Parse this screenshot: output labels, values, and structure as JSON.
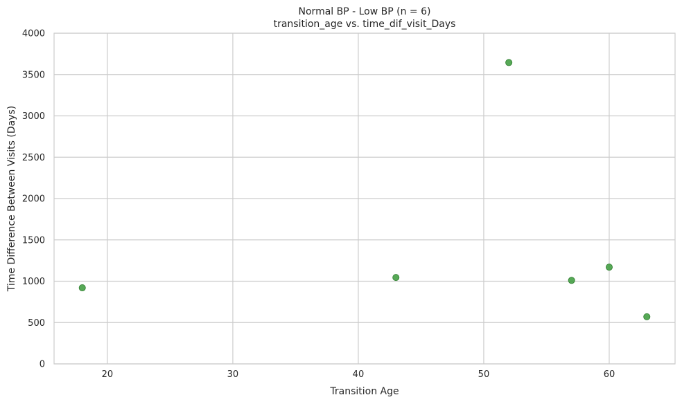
{
  "chart_data": {
    "type": "scatter",
    "title": "Normal BP - Low BP (n = 6)",
    "subtitle": "transition_age vs. time_dif_visit_Days",
    "xlabel": "Transition Age",
    "ylabel": "Time Difference Between Visits (Days)",
    "xlim": [
      15.75,
      65.25
    ],
    "ylim": [
      0,
      4000
    ],
    "xticks": [
      20,
      30,
      40,
      50,
      60
    ],
    "yticks": [
      0,
      500,
      1000,
      1500,
      2000,
      2500,
      3000,
      3500,
      4000
    ],
    "grid": true,
    "point_color": "#3a9a3a",
    "points": [
      {
        "x": 18,
        "y": 920
      },
      {
        "x": 43,
        "y": 1045
      },
      {
        "x": 52,
        "y": 3645
      },
      {
        "x": 57,
        "y": 1010
      },
      {
        "x": 60,
        "y": 1170
      },
      {
        "x": 63,
        "y": 570
      }
    ]
  }
}
